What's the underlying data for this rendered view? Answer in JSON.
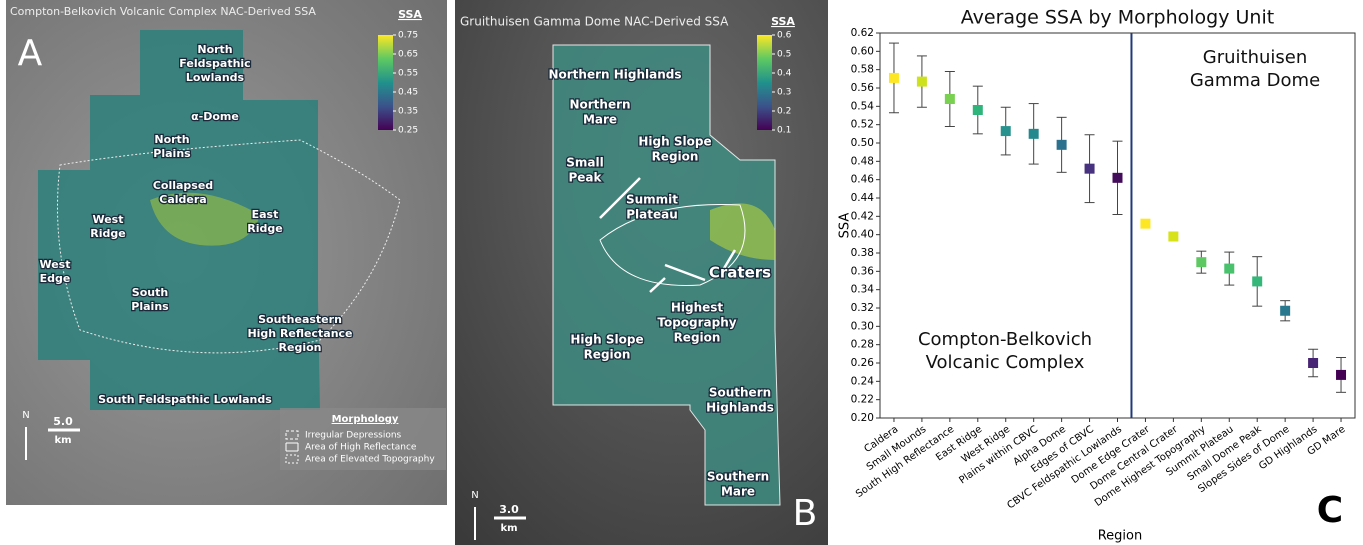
{
  "panels": [
    {
      "title": "Compton-Belkovich Volcanic Complex NAC-Derived SSA",
      "letter": "A",
      "colorbar_title": "SSA",
      "colorbar_ticks": [
        0.75,
        0.65,
        0.55,
        0.45,
        0.35,
        0.25
      ],
      "labels": [
        {
          "lines": [
            "North",
            "Feldspathic",
            "Lowlands"
          ]
        },
        {
          "lines": [
            "α-Dome"
          ]
        },
        {
          "lines": [
            "North",
            "Plains"
          ]
        },
        {
          "lines": [
            "Collapsed",
            "Caldera"
          ]
        },
        {
          "lines": [
            "West",
            "Ridge"
          ]
        },
        {
          "lines": [
            "East",
            "Ridge"
          ]
        },
        {
          "lines": [
            "West",
            "Edge"
          ]
        },
        {
          "lines": [
            "South",
            "Plains"
          ]
        },
        {
          "lines": [
            "Southeastern",
            "High Reflectance",
            "Region"
          ]
        },
        {
          "lines": [
            "South Feldspathic Lowlands"
          ]
        }
      ],
      "north": "N",
      "scale": "5.0",
      "scale_unit": "km",
      "legend": {
        "title": "Morphology",
        "items": [
          "Irregular Depressions",
          "Area of High Reflectance",
          "Area of Elevated Topography"
        ]
      }
    },
    {
      "title": "Gruithuisen Gamma Dome NAC-Derived SSA",
      "letter": "B",
      "colorbar_title": "SSA",
      "colorbar_ticks": [
        0.6,
        0.5,
        0.4,
        0.3,
        0.2,
        0.1
      ],
      "labels": [
        {
          "lines": [
            "Northern Highlands"
          ]
        },
        {
          "lines": [
            "Northern",
            "Mare"
          ]
        },
        {
          "lines": [
            "High Slope",
            "Region"
          ]
        },
        {
          "lines": [
            "Small",
            "Peak"
          ]
        },
        {
          "lines": [
            "Summit",
            "Plateau"
          ]
        },
        {
          "lines": [
            "Craters"
          ]
        },
        {
          "lines": [
            "Highest",
            "Topography",
            "Region"
          ]
        },
        {
          "lines": [
            "High Slope",
            "Region"
          ]
        },
        {
          "lines": [
            "Southern",
            "Highlands"
          ]
        },
        {
          "lines": [
            "Southern",
            "Mare"
          ]
        }
      ],
      "north": "N",
      "scale": "3.0",
      "scale_unit": "km"
    }
  ],
  "chart_data": {
    "type": "errorbar",
    "title": "Average SSA by Morphology Unit",
    "letter": "C",
    "x_label": "Region",
    "y_label": "SSA",
    "categories": [
      "Caldera",
      "Small Mounds",
      "South High Reflectance",
      "East Ridge",
      "West Ridge",
      "Plains within CBVC",
      "Alpha Dome",
      "Edges of CBVC",
      "CBVC Feldspathic Lowlands",
      "Dome Edge Crater",
      "Dome Central Crater",
      "Dome Highest Topography",
      "Summit Plateau",
      "Small Dome Peak",
      "Slopes Sides of Dome",
      "GD Highlands",
      "GD Mare"
    ],
    "values": [
      0.571,
      0.567,
      0.548,
      0.536,
      0.513,
      0.51,
      0.498,
      0.472,
      0.462,
      0.412,
      0.398,
      0.37,
      0.363,
      0.349,
      0.317,
      0.26,
      0.247
    ],
    "errors": [
      0.038,
      0.028,
      0.03,
      0.026,
      0.026,
      0.033,
      0.03,
      0.037,
      0.04,
      null,
      null,
      0.012,
      0.018,
      0.027,
      0.011,
      0.015,
      0.019
    ],
    "colors": [
      "#fde725",
      "#cde11d",
      "#7ad151",
      "#2fb47c",
      "#27928e",
      "#23898e",
      "#2c728e",
      "#46327e",
      "#440d5c",
      "#fde725",
      "#d8e219",
      "#5ec962",
      "#4ac16d",
      "#35b779",
      "#2a788e",
      "#482475",
      "#440154"
    ],
    "annotations": [
      {
        "lines": [
          "Gruithuisen",
          "Gamma Dome"
        ]
      },
      {
        "lines": [
          "Compton-Belkovich",
          "Volcanic Complex"
        ]
      }
    ],
    "ylim": [
      0.2,
      0.62
    ],
    "yticks": [
      {
        "value": 0.2,
        "label": "0.20"
      },
      {
        "value": 0.22,
        "label": "0.22"
      },
      {
        "value": 0.24,
        "label": "0.24"
      },
      {
        "value": 0.26,
        "label": "0.26"
      },
      {
        "value": 0.28,
        "label": "0.28"
      },
      {
        "value": 0.3,
        "label": "0.30"
      },
      {
        "value": 0.32,
        "label": "0.32"
      },
      {
        "value": 0.34,
        "label": "0.34"
      },
      {
        "value": 0.36,
        "label": "0.36"
      },
      {
        "value": 0.38,
        "label": "0.38"
      },
      {
        "value": 0.4,
        "label": "0.40"
      },
      {
        "value": 0.42,
        "label": "0.42"
      },
      {
        "value": 0.44,
        "label": "0.44"
      },
      {
        "value": 0.46,
        "label": "0.46"
      },
      {
        "value": 0.48,
        "label": "0.48"
      },
      {
        "value": 0.5,
        "label": "0.50"
      },
      {
        "value": 0.52,
        "label": "0.52"
      },
      {
        "value": 0.54,
        "label": "0.54"
      },
      {
        "value": 0.56,
        "label": "0.56"
      },
      {
        "value": 0.58,
        "label": "0.58"
      },
      {
        "value": 0.6,
        "label": "0.60"
      },
      {
        "value": 0.62,
        "label": "0.62"
      }
    ]
  }
}
